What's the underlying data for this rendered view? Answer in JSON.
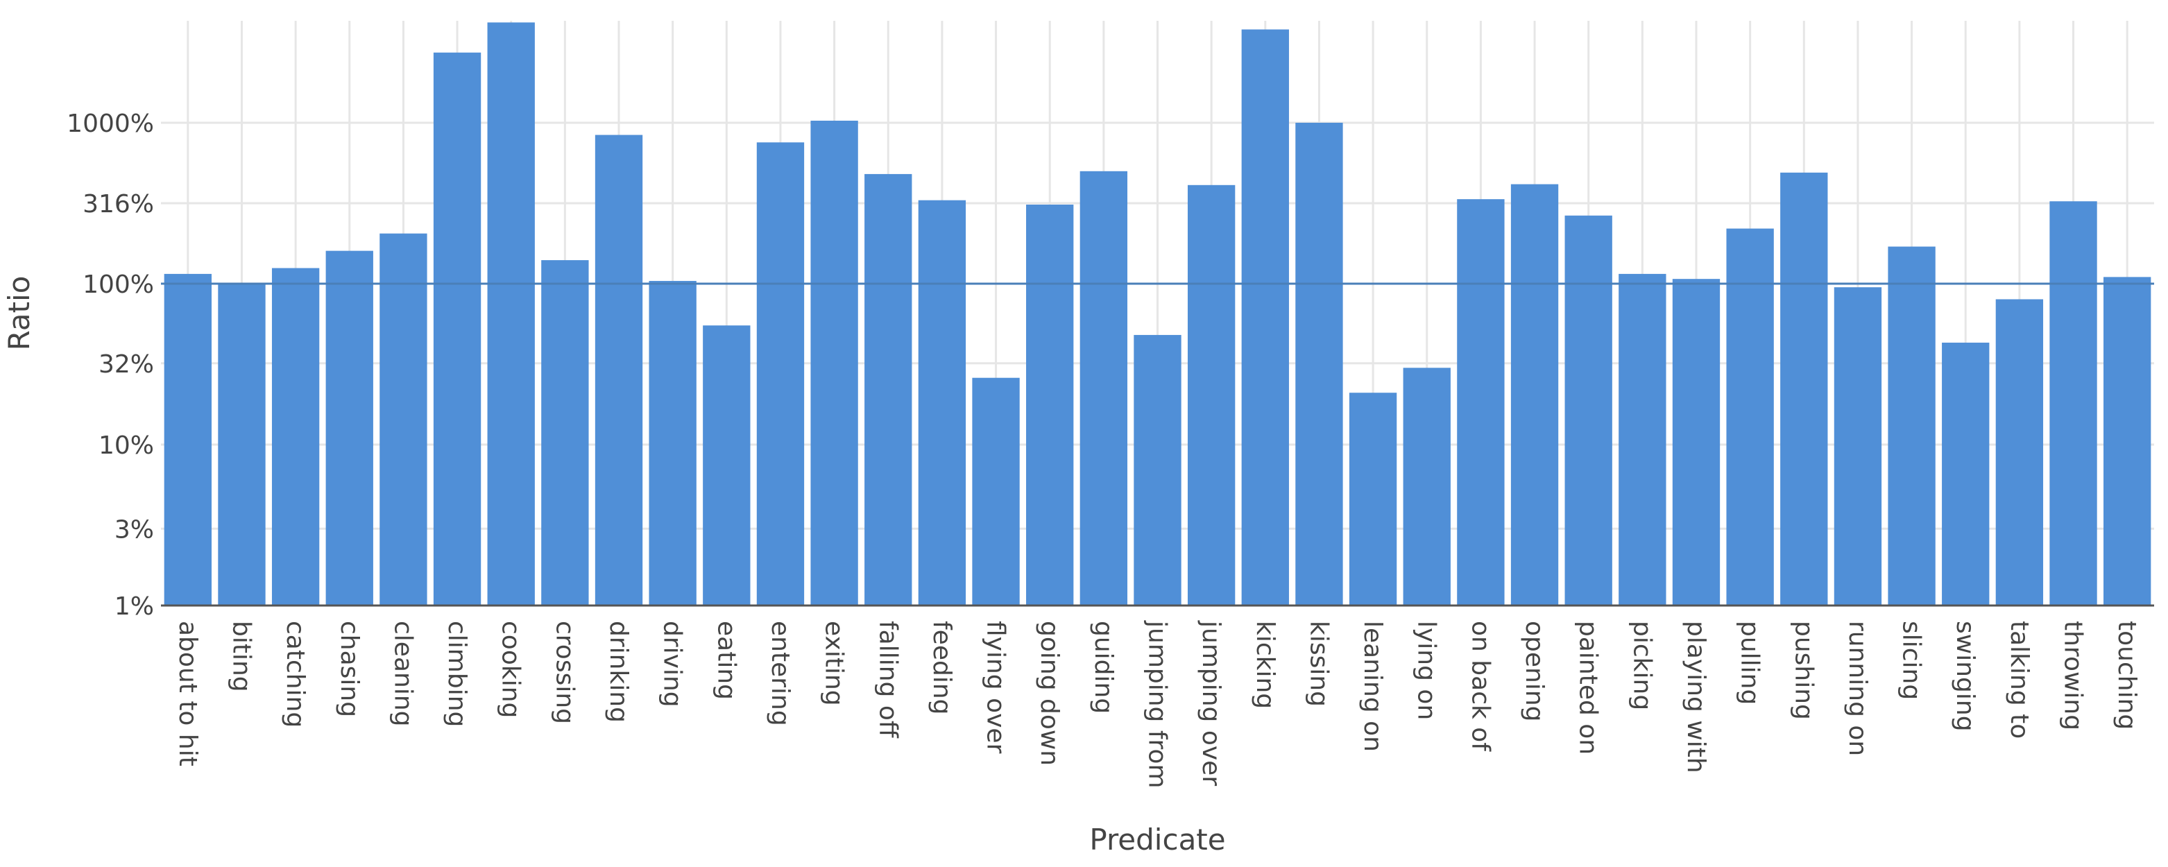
{
  "chart_data": {
    "type": "bar",
    "xlabel": "Predicate",
    "ylabel": "Ratio",
    "yscale": "log",
    "ylim": [
      1,
      4300
    ],
    "yticks": [
      {
        "value": 1,
        "label": "1%"
      },
      {
        "value": 3,
        "label": "3%"
      },
      {
        "value": 10,
        "label": "10%"
      },
      {
        "value": 32,
        "label": "32%"
      },
      {
        "value": 100,
        "label": "100%"
      },
      {
        "value": 316,
        "label": "316%"
      },
      {
        "value": 1000,
        "label": "1000%"
      }
    ],
    "reference_line": 100,
    "grid": true,
    "bar_color": "#508fd7",
    "categories": [
      "about to hit",
      "biting",
      "catching",
      "chasing",
      "cleaning",
      "climbing",
      "cooking",
      "crossing",
      "drinking",
      "driving",
      "eating",
      "entering",
      "exiting",
      "falling off",
      "feeding",
      "flying over",
      "going down",
      "guiding",
      "jumping from",
      "jumping over",
      "kicking",
      "kissing",
      "leaning on",
      "lying on",
      "on back of",
      "opening",
      "painted on",
      "picking",
      "playing with",
      "pulling",
      "pushing",
      "running on",
      "slicing",
      "swinging",
      "talking to",
      "throwing",
      "touching"
    ],
    "values": [
      115,
      100,
      125,
      160,
      205,
      2730,
      4200,
      140,
      840,
      104,
      55,
      755,
      1030,
      480,
      330,
      26,
      310,
      500,
      48,
      410,
      3800,
      1000,
      21,
      30,
      335,
      415,
      265,
      115,
      107,
      220,
      490,
      95,
      170,
      43,
      80,
      325,
      110
    ]
  }
}
